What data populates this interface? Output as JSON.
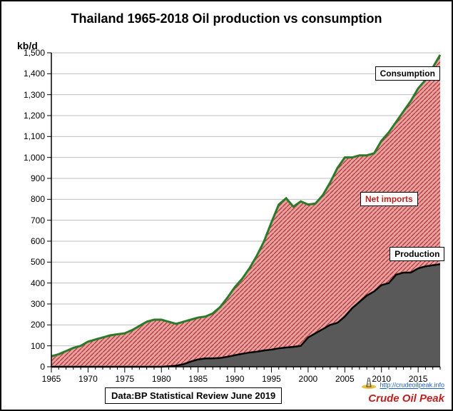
{
  "chart": {
    "type": "area",
    "title": "Thailand 1965-2018 Oil production vs consumption",
    "ylabel": "kb/d",
    "title_fontsize": 18,
    "label_fontsize": 14,
    "tick_fontsize": 12,
    "background_color": "#ffffff",
    "border_color": "#000000",
    "grid_color": "#bfbfbf",
    "xlim": [
      1965,
      2018
    ],
    "ylim": [
      0,
      1500
    ],
    "ytick_step": 100,
    "xtick_step": 5,
    "years": [
      1965,
      1966,
      1967,
      1968,
      1969,
      1970,
      1971,
      1972,
      1973,
      1974,
      1975,
      1976,
      1977,
      1978,
      1979,
      1980,
      1981,
      1982,
      1983,
      1984,
      1985,
      1986,
      1987,
      1988,
      1989,
      1990,
      1991,
      1992,
      1993,
      1994,
      1995,
      1996,
      1997,
      1998,
      1999,
      2000,
      2001,
      2002,
      2003,
      2004,
      2005,
      2006,
      2007,
      2008,
      2009,
      2010,
      2011,
      2012,
      2013,
      2014,
      2015,
      2016,
      2017,
      2018
    ],
    "production": [
      0,
      0,
      0,
      0,
      0,
      0,
      0,
      0,
      0,
      0,
      0,
      0,
      0,
      0,
      0,
      0,
      2,
      5,
      12,
      25,
      35,
      40,
      40,
      42,
      48,
      55,
      62,
      68,
      72,
      78,
      82,
      88,
      92,
      95,
      100,
      140,
      160,
      180,
      200,
      210,
      240,
      280,
      310,
      340,
      360,
      390,
      400,
      440,
      450,
      450,
      470,
      480,
      485,
      490
    ],
    "consumption": [
      50,
      60,
      75,
      90,
      100,
      120,
      130,
      140,
      150,
      155,
      160,
      175,
      195,
      215,
      225,
      225,
      215,
      205,
      215,
      225,
      235,
      240,
      255,
      285,
      330,
      380,
      420,
      470,
      530,
      600,
      690,
      775,
      805,
      765,
      790,
      775,
      780,
      820,
      880,
      950,
      1000,
      1000,
      1010,
      1010,
      1020,
      1080,
      1120,
      1170,
      1220,
      1270,
      1330,
      1370,
      1430,
      1490
    ],
    "production_fill": "#595959",
    "production_line_color": "#000000",
    "production_line_width": 2.5,
    "netimports_fill": "#e8a0a0",
    "netimports_hatch_color": "#b03030",
    "consumption_line_color": "#2a7a2a",
    "consumption_line_width": 3,
    "labels": {
      "consumption": "Consumption",
      "netimports": "Net imports",
      "production": "Production"
    },
    "label_positions": {
      "consumption": {
        "x_year": 2013,
        "y_value": 1400
      },
      "netimports": {
        "x_year": 2011,
        "y_value": 800
      },
      "production": {
        "x_year": 2015,
        "y_value": 540
      }
    },
    "label_colors": {
      "consumption": "#000000",
      "netimports": "#c02020",
      "production": "#000000"
    },
    "data_source": "Data:BP Statistical Review June 2019",
    "brand": {
      "url": "http://crudeoilpeak.info",
      "name": "Crude Oil Peak",
      "url_color": "#2060c0",
      "name_color": "#c02020"
    }
  }
}
